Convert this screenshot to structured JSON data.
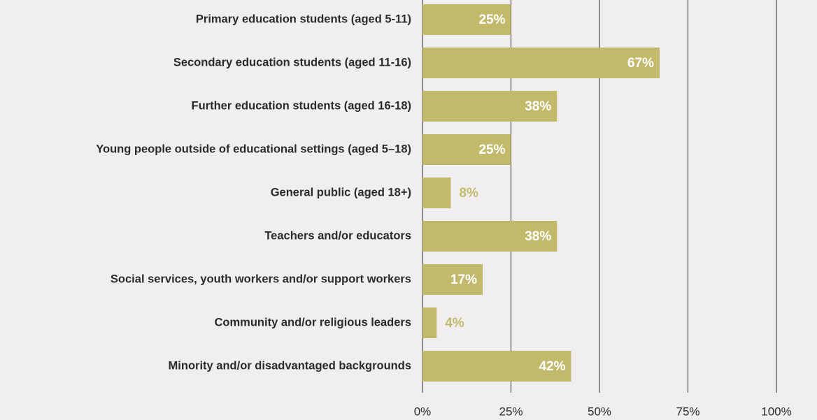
{
  "chart_data": {
    "type": "barh",
    "categories": [
      "Primary education students (aged 5-11)",
      "Secondary education students (aged 11-16)",
      "Further education students (aged 16-18)",
      "Young people outside of educational settings (aged 5–18)",
      "General public (aged 18+)",
      "Teachers and/or educators",
      "Social services, youth workers and/or support workers",
      "Community and/or religious leaders",
      "Minority and/or disadvantaged backgrounds"
    ],
    "values": [
      25,
      67,
      38,
      25,
      8,
      38,
      17,
      4,
      42
    ],
    "value_labels": [
      "25%",
      "67%",
      "38%",
      "25%",
      "8%",
      "38%",
      "17%",
      "4%",
      "42%"
    ],
    "color": "#c2b96b",
    "xlim": [
      0,
      100
    ],
    "xticks": [
      {
        "value": 0,
        "label": "0%"
      },
      {
        "value": 25,
        "label": "25%"
      },
      {
        "value": 50,
        "label": "50%"
      },
      {
        "value": 75,
        "label": "75%"
      },
      {
        "value": 100,
        "label": "100%"
      }
    ],
    "grid": true
  }
}
